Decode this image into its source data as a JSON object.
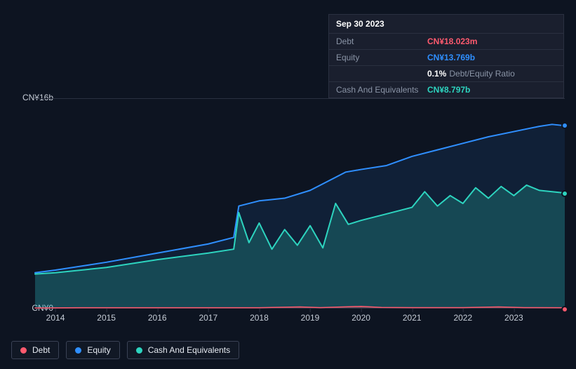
{
  "tooltip": {
    "date": "Sep 30 2023",
    "rows": {
      "debt": {
        "label": "Debt",
        "value": "CN¥18.023m"
      },
      "equity": {
        "label": "Equity",
        "value": "CN¥13.769b"
      },
      "ratio": {
        "label": "",
        "pct": "0.1%",
        "text": "Debt/Equity Ratio"
      },
      "cash": {
        "label": "Cash And Equivalents",
        "value": "CN¥8.797b"
      }
    }
  },
  "chart": {
    "type": "area",
    "background_color": "#0d1421",
    "grid_color": "#2a3040",
    "text_color": "#c5ccd6",
    "label_fontsize": 12,
    "x": {
      "min": 2013.6,
      "max": 2024.0,
      "ticks": [
        2014,
        2015,
        2016,
        2017,
        2018,
        2019,
        2020,
        2021,
        2022,
        2023
      ]
    },
    "y": {
      "min": 0,
      "max": 16,
      "unit_prefix": "CN¥",
      "unit_suffix": "b",
      "ticks": [
        {
          "v": 0,
          "label": "CN¥0"
        },
        {
          "v": 16,
          "label": "CN¥16b"
        }
      ]
    },
    "series": {
      "equity": {
        "label": "Equity",
        "color": "#2f8fff",
        "fill": "rgba(47,143,255,0.10)",
        "line_width": 2,
        "data": [
          [
            2013.6,
            2.7
          ],
          [
            2014.0,
            2.9
          ],
          [
            2015.0,
            3.5
          ],
          [
            2016.0,
            4.2
          ],
          [
            2017.0,
            4.9
          ],
          [
            2017.5,
            5.4
          ],
          [
            2017.6,
            7.8
          ],
          [
            2018.0,
            8.2
          ],
          [
            2018.5,
            8.4
          ],
          [
            2019.0,
            9.0
          ],
          [
            2019.5,
            10.0
          ],
          [
            2019.7,
            10.4
          ],
          [
            2020.0,
            10.6
          ],
          [
            2020.5,
            10.9
          ],
          [
            2021.0,
            11.6
          ],
          [
            2021.5,
            12.1
          ],
          [
            2022.0,
            12.6
          ],
          [
            2022.5,
            13.1
          ],
          [
            2023.0,
            13.5
          ],
          [
            2023.5,
            13.9
          ],
          [
            2023.75,
            14.05
          ],
          [
            2024.0,
            13.95
          ]
        ]
      },
      "cash": {
        "label": "Cash And Equivalents",
        "color": "#2dd4bf",
        "fill": "rgba(45,212,191,0.22)",
        "line_width": 2,
        "data": [
          [
            2013.6,
            2.6
          ],
          [
            2014.0,
            2.7
          ],
          [
            2015.0,
            3.1
          ],
          [
            2016.0,
            3.7
          ],
          [
            2017.0,
            4.2
          ],
          [
            2017.5,
            4.5
          ],
          [
            2017.6,
            7.3
          ],
          [
            2017.8,
            5.0
          ],
          [
            2018.0,
            6.5
          ],
          [
            2018.25,
            4.5
          ],
          [
            2018.5,
            6.0
          ],
          [
            2018.75,
            4.8
          ],
          [
            2019.0,
            6.3
          ],
          [
            2019.25,
            4.6
          ],
          [
            2019.5,
            8.0
          ],
          [
            2019.75,
            6.4
          ],
          [
            2020.0,
            6.7
          ],
          [
            2020.5,
            7.2
          ],
          [
            2021.0,
            7.7
          ],
          [
            2021.25,
            8.9
          ],
          [
            2021.5,
            7.8
          ],
          [
            2021.75,
            8.6
          ],
          [
            2022.0,
            8.0
          ],
          [
            2022.25,
            9.2
          ],
          [
            2022.5,
            8.4
          ],
          [
            2022.75,
            9.3
          ],
          [
            2023.0,
            8.6
          ],
          [
            2023.25,
            9.4
          ],
          [
            2023.5,
            9.0
          ],
          [
            2023.75,
            8.9
          ],
          [
            2024.0,
            8.8
          ]
        ]
      },
      "debt": {
        "label": "Debt",
        "color": "#ff5a6e",
        "fill": "rgba(255,90,110,0.30)",
        "line_width": 1.5,
        "data": [
          [
            2013.6,
            0.0
          ],
          [
            2014.5,
            0.02
          ],
          [
            2016.0,
            0.02
          ],
          [
            2018.0,
            0.02
          ],
          [
            2018.8,
            0.08
          ],
          [
            2019.2,
            0.03
          ],
          [
            2020.0,
            0.12
          ],
          [
            2020.4,
            0.04
          ],
          [
            2021.0,
            0.03
          ],
          [
            2022.0,
            0.03
          ],
          [
            2022.7,
            0.08
          ],
          [
            2023.2,
            0.03
          ],
          [
            2024.0,
            0.018
          ]
        ]
      }
    },
    "legend_order": [
      "debt",
      "equity",
      "cash"
    ]
  }
}
